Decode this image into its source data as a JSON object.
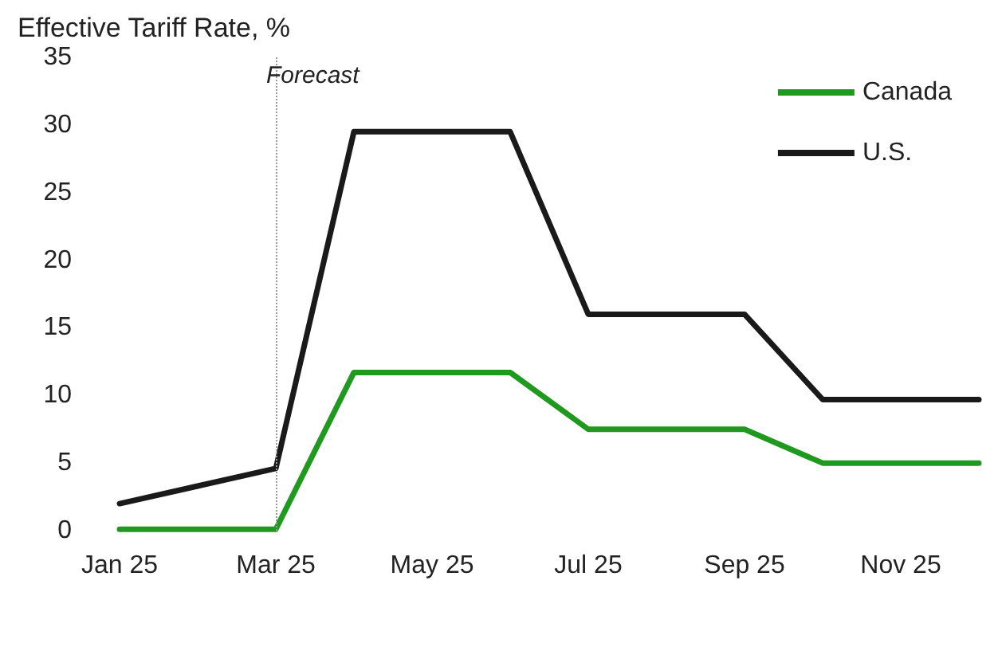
{
  "chart_data": {
    "type": "line",
    "title": "Effective Tariff Rate, %",
    "categories": [
      "Jan 25",
      null,
      "Mar 25",
      null,
      "May 25",
      null,
      "Jul 25",
      null,
      "Sep 25",
      null,
      "Nov 25",
      null
    ],
    "series": [
      {
        "name": "Canada",
        "color": "#1f9a1f",
        "values": [
          0.1,
          0.1,
          0.1,
          11.7,
          11.7,
          11.7,
          7.5,
          7.5,
          7.5,
          5,
          5,
          5
        ]
      },
      {
        "name": "U.S.",
        "color": "#1a1a1a",
        "values": [
          2,
          3.3,
          4.6,
          29.5,
          29.5,
          29.5,
          16,
          16,
          16,
          9.7,
          9.7,
          9.7
        ]
      }
    ],
    "ylim": [
      0,
      35
    ],
    "yticks": [
      0,
      5,
      10,
      15,
      20,
      25,
      30,
      35
    ],
    "ref_lines": [
      {
        "axis": "x",
        "value": "Mar 25",
        "label": "Forecast",
        "color": "#999999",
        "line_style": "dotted"
      }
    ],
    "grid": false,
    "legend": "top right",
    "marker": "none",
    "line_style": "solid"
  }
}
